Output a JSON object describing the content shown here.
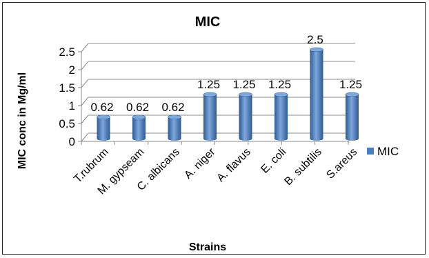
{
  "chart_data": {
    "type": "bar",
    "title": "MIC",
    "xlabel": "Strains",
    "ylabel": "MIC conc in Mg/ml",
    "categories": [
      "T.rubrum",
      "M. gypseam",
      "C. albicans",
      "A. niger",
      "A. flavus",
      "E. coli",
      "B. subtilis",
      "S.areus"
    ],
    "series": [
      {
        "name": "MIC",
        "values": [
          0.62,
          0.62,
          0.62,
          1.25,
          1.25,
          1.25,
          2.5,
          1.25
        ],
        "value_labels": [
          "0.62",
          "0.62",
          "0.62",
          "1.25",
          "1.25",
          "1.25",
          "2.5",
          "1.25"
        ]
      }
    ],
    "ylim": [
      0,
      2.5
    ],
    "yticks": [
      "0",
      "0.5",
      "1",
      "1.5",
      "2",
      "2.5"
    ],
    "grid": true,
    "legend": "right",
    "colors": {
      "bar": "#4a7cc0",
      "bar_dark": "#2e5a92",
      "bar_light": "#7ea7dc",
      "grid": "#8a8a8a"
    }
  }
}
